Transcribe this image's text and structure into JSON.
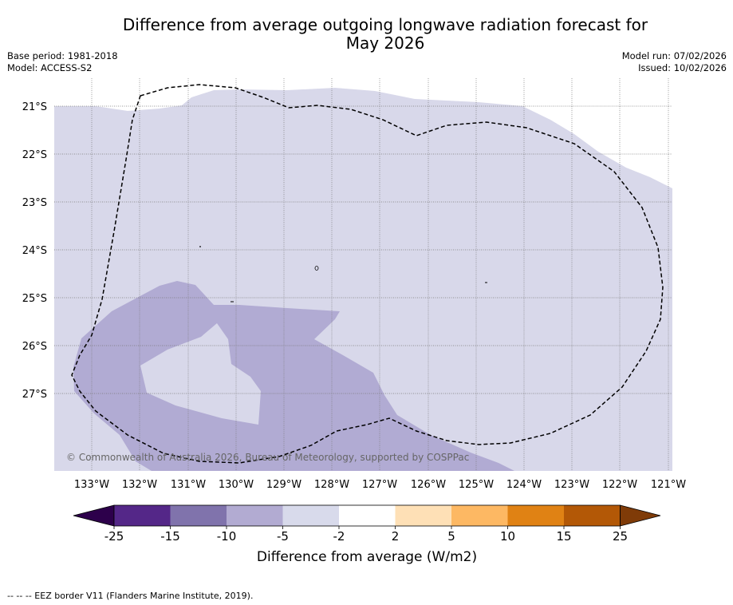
{
  "title": {
    "line1": "Difference from average outgoing longwave radiation forecast for",
    "line2": "May 2026"
  },
  "meta_left": {
    "base_period": "Base period: 1981-2018",
    "model": "Model: ACCESS-S2"
  },
  "meta_right": {
    "model_run": "Model run: 07/02/2026",
    "issued": "Issued: 10/02/2026"
  },
  "map": {
    "lat_labels": [
      "21°S",
      "22°S",
      "23°S",
      "24°S",
      "25°S",
      "26°S",
      "27°S"
    ],
    "lon_labels": [
      "133°W",
      "132°W",
      "131°W",
      "130°W",
      "129°W",
      "128°W",
      "127°W",
      "126°W",
      "125°W",
      "124°W",
      "123°W",
      "122°W",
      "121°W"
    ],
    "copyright": "© Commonwealth of Australia 2026, Bureau of Meteorology, supported by COSPPac",
    "colors": {
      "light_lavender": "#d8d8ea",
      "mid_lavender": "#b1abd3",
      "eez_border": "#000000"
    }
  },
  "colorbar": {
    "tick_labels": [
      "-25",
      "-15",
      "-10",
      "-5",
      "-2",
      "2",
      "5",
      "10",
      "15",
      "25"
    ],
    "label": "Difference from average (W/m2)",
    "colors": [
      "#2d004b",
      "#542788",
      "#8073ac",
      "#b2abd2",
      "#d8daeb",
      "#ffffff",
      "#fee0b6",
      "#fdb863",
      "#e08214",
      "#b35806",
      "#7f3b08"
    ]
  },
  "footnote": "--  --  -- EEZ border V11 (Flanders Marine Institute, 2019)."
}
